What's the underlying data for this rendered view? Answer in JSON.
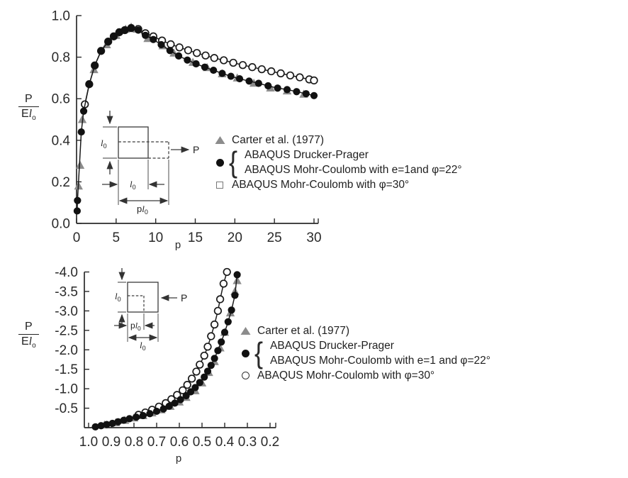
{
  "colors": {
    "axis": "#2a2a2a",
    "line": "#1a1a1a",
    "triangle": "#8c8c8c",
    "filled_marker": "#111111",
    "open_marker_fill": "#ffffff",
    "text": "#2a2a2a"
  },
  "chart_data": [
    {
      "id": "top",
      "type": "line",
      "title": "",
      "xlabel": "p",
      "ylabel": {
        "num": "P",
        "den_main": "E",
        "den_italic": "l",
        "den_sub": "o"
      },
      "xlim": [
        0,
        30
      ],
      "ylim": [
        0,
        1.0
      ],
      "grid": false,
      "x_tick_values": [
        0,
        5,
        10,
        15,
        20,
        25,
        30
      ],
      "x_tick_labels": [
        "0",
        "5",
        "10",
        "15",
        "20",
        "25",
        "30"
      ],
      "y_tick_values": [
        0,
        0.2,
        0.4,
        0.6,
        0.8,
        1.0
      ],
      "y_tick_labels": [
        "0.0",
        "0.2",
        "0.4",
        "0.6",
        "0.8",
        "1.0"
      ],
      "series": [
        {
          "name": "Carter et al. (1977)",
          "marker": "triangle",
          "line": false,
          "x": [
            0.25,
            0.45,
            0.72,
            2.2,
            3.8,
            5.0,
            6.2,
            6.9,
            7.6,
            9.0,
            10.9,
            12.3,
            14.7,
            16.5,
            18.4,
            20.3,
            22.4,
            24.5,
            26.6,
            28.7
          ],
          "y": [
            0.18,
            0.28,
            0.5,
            0.74,
            0.86,
            0.905,
            0.935,
            0.945,
            0.935,
            0.89,
            0.855,
            0.82,
            0.775,
            0.75,
            0.72,
            0.7,
            0.675,
            0.652,
            0.638,
            0.622
          ]
        },
        {
          "name": "ABAQUS Mohr-Coulomb with φ=30°",
          "marker": "open-circle",
          "line": true,
          "x": [
            1.05,
            1.6,
            2.3,
            3.1,
            4.0,
            4.7,
            5.4,
            6.1,
            6.9,
            7.8,
            8.7,
            9.7,
            10.8,
            11.9,
            13.0,
            14.1,
            15.2,
            16.3,
            17.4,
            18.6,
            19.8,
            21.0,
            22.2,
            23.4,
            24.6,
            25.8,
            27.0,
            28.2,
            29.4,
            30.0
          ],
          "y": [
            0.573,
            0.67,
            0.76,
            0.83,
            0.875,
            0.9,
            0.92,
            0.93,
            0.94,
            0.935,
            0.915,
            0.9,
            0.88,
            0.862,
            0.847,
            0.833,
            0.82,
            0.808,
            0.796,
            0.785,
            0.773,
            0.762,
            0.752,
            0.742,
            0.732,
            0.722,
            0.712,
            0.703,
            0.693,
            0.688
          ]
        },
        {
          "name": "ABAQUS Drucker-Prager / ABAQUS Mohr-Coulomb with e=1 and φ=22°",
          "marker": "filled-circle",
          "line": true,
          "x": [
            0.08,
            0.12,
            0.6,
            0.9,
            1.6,
            2.3,
            3.1,
            4.0,
            4.7,
            5.4,
            6.1,
            6.9,
            7.8,
            8.7,
            9.7,
            10.7,
            11.8,
            12.9,
            14.0,
            15.1,
            16.2,
            17.3,
            18.4,
            19.5,
            20.6,
            21.8,
            23.0,
            24.2,
            25.4,
            26.6,
            27.8,
            29.0,
            30.0
          ],
          "y": [
            0.06,
            0.11,
            0.44,
            0.54,
            0.67,
            0.76,
            0.83,
            0.875,
            0.9,
            0.92,
            0.93,
            0.94,
            0.93,
            0.905,
            0.885,
            0.86,
            0.832,
            0.806,
            0.786,
            0.768,
            0.752,
            0.737,
            0.722,
            0.708,
            0.696,
            0.685,
            0.674,
            0.662,
            0.651,
            0.644,
            0.634,
            0.624,
            0.615
          ]
        }
      ]
    },
    {
      "id": "bottom",
      "type": "line",
      "title": "",
      "xlabel": "p",
      "ylabel": {
        "num": "P",
        "den_main": "E",
        "den_italic": "l",
        "den_sub": "o"
      },
      "xlim": [
        1.0,
        0.2
      ],
      "ylim": [
        0,
        -4.0
      ],
      "grid": false,
      "x_tick_values": [
        1.0,
        0.9,
        0.8,
        0.7,
        0.6,
        0.5,
        0.4,
        0.3,
        0.2
      ],
      "x_tick_labels": [
        "1.0",
        "0.9",
        "0.8",
        "0.7",
        "0.6",
        "0.5",
        "0.4",
        "0.3",
        "0.2"
      ],
      "y_tick_values": [
        -0.5,
        -1.0,
        -1.5,
        -2.0,
        -2.5,
        -3.0,
        -3.5,
        -4.0
      ],
      "y_tick_labels": [
        "-0.5",
        "-1.0",
        "-1.5",
        "-2.0",
        "-2.5",
        "-3.0",
        "-3.5",
        "-4.0"
      ],
      "series": [
        {
          "name": "Carter et al. (1977)",
          "marker": "triangle",
          "line": false,
          "x": [
            0.93,
            0.88,
            0.84,
            0.8,
            0.76,
            0.72,
            0.68,
            0.64,
            0.6,
            0.57,
            0.53,
            0.5,
            0.47,
            0.445,
            0.42,
            0.4,
            0.375,
            0.355,
            0.345
          ],
          "y": [
            -0.07,
            -0.13,
            -0.19,
            -0.25,
            -0.31,
            -0.38,
            -0.46,
            -0.55,
            -0.66,
            -0.78,
            -0.95,
            -1.15,
            -1.42,
            -1.7,
            -2.05,
            -2.45,
            -2.95,
            -3.5,
            -3.78
          ]
        },
        {
          "name": "ABAQUS Mohr-Coulomb with φ=30°",
          "marker": "open-circle",
          "line": true,
          "x": [
            0.78,
            0.75,
            0.72,
            0.69,
            0.66,
            0.635,
            0.61,
            0.585,
            0.565,
            0.545,
            0.525,
            0.51,
            0.49,
            0.475,
            0.46,
            0.445,
            0.43,
            0.42,
            0.405,
            0.39
          ],
          "y": [
            -0.33,
            -0.39,
            -0.46,
            -0.54,
            -0.63,
            -0.73,
            -0.84,
            -0.96,
            -1.1,
            -1.26,
            -1.44,
            -1.62,
            -1.85,
            -2.08,
            -2.35,
            -2.65,
            -3.0,
            -3.3,
            -3.7,
            -4.0
          ]
        },
        {
          "name": "ABAQUS Drucker-Prager / ABAQUS Mohr-Coulomb with e=1 and φ=22°",
          "marker": "filled-circle",
          "line": true,
          "x": [
            0.97,
            0.945,
            0.92,
            0.895,
            0.87,
            0.845,
            0.82,
            0.79,
            0.76,
            0.73,
            0.7,
            0.67,
            0.645,
            0.62,
            0.595,
            0.57,
            0.55,
            0.53,
            0.51,
            0.49,
            0.475,
            0.46,
            0.445,
            0.43,
            0.415,
            0.4,
            0.385,
            0.37,
            0.355,
            0.345
          ],
          "y": [
            -0.02,
            -0.05,
            -0.08,
            -0.11,
            -0.15,
            -0.19,
            -0.23,
            -0.27,
            -0.31,
            -0.36,
            -0.42,
            -0.48,
            -0.55,
            -0.63,
            -0.72,
            -0.82,
            -0.92,
            -1.03,
            -1.16,
            -1.3,
            -1.45,
            -1.6,
            -1.78,
            -1.98,
            -2.2,
            -2.45,
            -2.72,
            -3.02,
            -3.4,
            -3.93
          ]
        }
      ]
    }
  ],
  "top_chart_ylabel": {
    "num": "P",
    "den_main": "E",
    "den_italic": "l",
    "den_sub": "o"
  },
  "bottom_chart_ylabel": {
    "num": "P",
    "den_main": "E",
    "den_italic": "l",
    "den_sub": "o"
  },
  "top_legend": {
    "item1": "Carter et al. (1977)",
    "item2a": "ABAQUS Drucker-Prager",
    "item2b": "ABAQUS Mohr-Coulomb with e=1and φ=22°",
    "item3": "ABAQUS Mohr-Coulomb with φ=30°"
  },
  "bottom_legend": {
    "item1": "Carter et al. (1977)",
    "item2a": "ABAQUS Drucker-Prager",
    "item2b": "ABAQUS Mohr-Coulomb with e=1 and φ=22°",
    "item3": "ABAQUS Mohr-Coulomb with φ=30°"
  },
  "insets": {
    "top": {
      "force": "P",
      "len": "l",
      "sub": "0",
      "p_prefix": "p"
    },
    "bottom": {
      "force": "P",
      "len": "l",
      "sub": "0",
      "p_prefix": "p"
    }
  }
}
